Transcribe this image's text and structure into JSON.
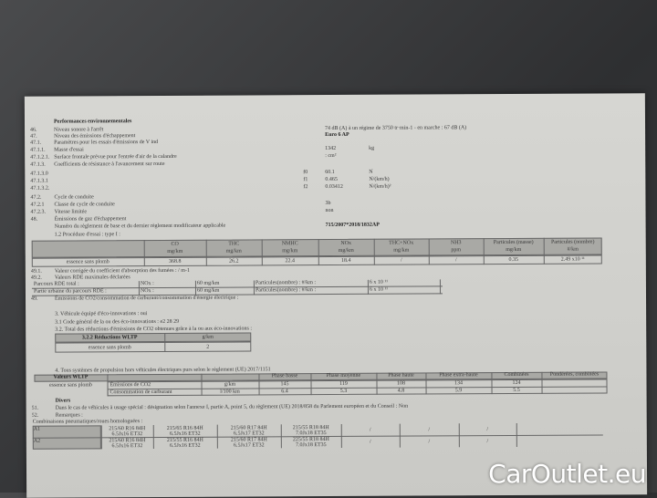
{
  "section_title": "Performances environnementales",
  "rows": [
    {
      "num": "46.",
      "label": "Niveau sonore à l'arrêt",
      "value": "74 dB (A)  à un régime de 3750 tr·min-1 - en marche :  67 dB (A)"
    },
    {
      "num": "47.",
      "label": "Niveau des émissions d'échappement",
      "value": "Euro 6 AP"
    },
    {
      "num": "47.1.",
      "label": "Paramètres pour les essais d'émissions de V ind"
    },
    {
      "num": "47.1.1.",
      "label": "Masse d'essai",
      "value": "1342",
      "unit": "kg"
    },
    {
      "num": "47.1.2.1.",
      "label": "Surface frontale prévue pour l'entrée d'air de la calandre",
      "value": ": cm²"
    },
    {
      "num": "47.1.3.",
      "label": "Coefficients de résistance à l'avancement sur route"
    },
    {
      "num": "47.1.3.0",
      "coef": "f0",
      "value": "60.1",
      "unit": "N"
    },
    {
      "num": "47.1.3.1",
      "coef": "f1",
      "value": "0.465",
      "unit": "N/(km/h)"
    },
    {
      "num": "47.1.3.2.",
      "coef": "f2",
      "value": "0.03412",
      "unit": "N/(km/h)²"
    },
    {
      "num": "47.2.",
      "label": "Cycle de conduite"
    },
    {
      "num": "47.2.1",
      "label": "Classe de cycle de conduite",
      "value": "3b"
    },
    {
      "num": "47.2.3.",
      "label": "Vitesse limitée",
      "value": "non"
    },
    {
      "num": "48.",
      "label": "Émissions de gaz d'échappement"
    },
    {
      "num": "",
      "label": "Numéro du règlement de base et du dernier règlement modificateur applicable",
      "value": "715/2007*2018/1832AP"
    }
  ],
  "procedure": "1.2 Procédure d'essai : type I :",
  "emissions_table": {
    "headers": [
      [
        "CO",
        "mg/km"
      ],
      [
        "THC",
        "mg/km"
      ],
      [
        "NMHC",
        "mg/km"
      ],
      [
        "NOx",
        "mg/km"
      ],
      [
        "THC+NOx",
        "mg/km"
      ],
      [
        "NH3",
        "ppm"
      ],
      [
        "Particules (masse)",
        "mg/km"
      ],
      [
        "Particules (nombre)",
        "#/km"
      ]
    ],
    "row_label": "essence sans plomb",
    "values": [
      "368.8",
      "26.2",
      "22.4",
      "18.4",
      "/",
      "/",
      "0.35",
      "2.49 x10 ¹¹"
    ]
  },
  "r491": {
    "num": "49.1.",
    "label": "Valeur corrigée du coefficient d'absorption des fumées : / m-1"
  },
  "r492": {
    "num": "49.2.",
    "label": "Valeurs RDE maximales déclarées"
  },
  "rde": [
    {
      "label": "Parcours RDE total :",
      "nox": "NOx :",
      "nox_val": "60 mg/km",
      "part": "Particules(nombre) : #/km :",
      "part_val": "6 x 10 ¹¹"
    },
    {
      "label": "Partie urbaine du parcours RDE :",
      "nox": "NOx :",
      "nox_val": "60 mg/km",
      "part": "Particules(nombre) : #/km :",
      "part_val": "6 x 10 ¹¹"
    }
  ],
  "r49": {
    "num": "49.",
    "label": "Émissions de CO2/consommation de carburant/consommation d'énergie électrique :"
  },
  "eco": {
    "l3": "3. Véhicule équipé d'éco-innovations : oui",
    "l31": "3.1 Code général de la ou des éco-innovations : e2 28 29",
    "l32": "3.2. Total des réductions d'émissions de CO2 obtenues grâce à la ou aux éco-innovations :",
    "table_head": "3.2.2 Réductions WLTP",
    "table_unit": "g/km",
    "row_label": "essence sans plomb",
    "row_value": "2"
  },
  "wltp_intro": "4. Tous systèmes de propulsion hors véhicules électriques purs selon le règlement (UE) 2017/1151",
  "wltp": {
    "corner": "Valeurs WLTP",
    "headers": [
      "Phase basse",
      "Phase moyenne",
      "Phase haute",
      "Phase extra-haute",
      "Combinées",
      "Pondérées, combinées"
    ],
    "fuel": "essence sans plomb",
    "rows": [
      {
        "name": "Émissions de CO2",
        "unit": "g/km",
        "values": [
          "145",
          "119",
          "108",
          "134",
          "124",
          ""
        ]
      },
      {
        "name": "Consommation de carburant",
        "unit": "l/100 km",
        "values": [
          "6.4",
          "5.3",
          "4.8",
          "5.9",
          "5.5",
          ""
        ]
      }
    ]
  },
  "divers": {
    "title": "Divers",
    "r51": {
      "num": "51.",
      "label": "Dans le cas de véhicules à usage spécial : désignation selon l'annexe I, partie A, point 5, du règlement (UE) 2018/858 du Parlement européen et du Conseil : Non"
    },
    "r52": {
      "num": "52.",
      "label": "Remarques :"
    },
    "combos": "Combinaisons pneumatiques/roues homologuées :"
  },
  "tires": [
    [
      "215/60 R16 84H",
      "6.5Jx16 ET32",
      "215/65 R16 84H",
      "6.5Jx16 ET32",
      "215/60 R17 84H",
      "6.5Jx17 ET32",
      "215/55 R18 84H",
      "7.0Jx18 ET35",
      "/",
      "/",
      "/"
    ],
    [
      "215/60 R16 84H",
      "6.5Jx16 ET32",
      "215/55 R16 84H",
      "6.5Jx16 ET32",
      "215/60 R17 84H",
      "6.5Jx17 ET32",
      "225/55 R18 84H",
      "7.0Jx18 ET35",
      "/",
      "/",
      "/"
    ]
  ],
  "tire_axles": [
    "A1",
    "A2"
  ],
  "watermark": "CarOutlet.eu"
}
